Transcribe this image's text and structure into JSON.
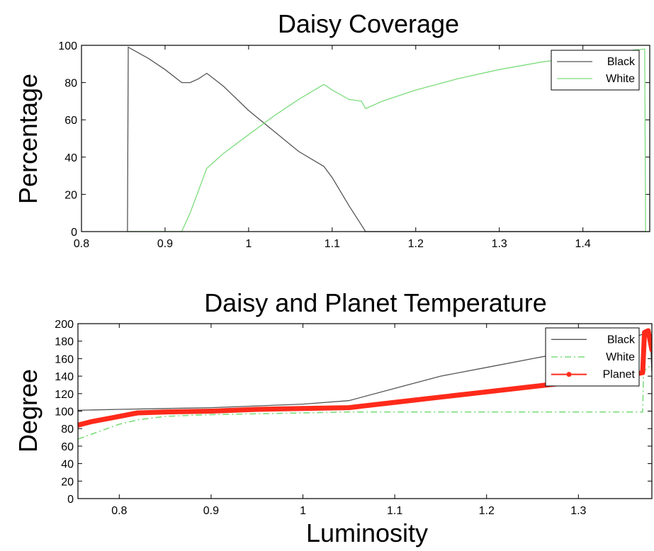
{
  "chart_data": [
    {
      "type": "line",
      "title": "Daisy Coverage",
      "xlabel": "",
      "ylabel": "Percentage",
      "xlim": [
        0.8,
        1.48
      ],
      "ylim": [
        0,
        100
      ],
      "xticks": [
        0.8,
        0.9,
        1,
        1.1,
        1.2,
        1.3,
        1.4
      ],
      "xtick_labels": [
        "0.8",
        "0.9",
        "1",
        "1.1",
        "1.2",
        "1.3",
        "1.4"
      ],
      "yticks": [
        0,
        20,
        40,
        60,
        80,
        100
      ],
      "ytick_labels": [
        "0",
        "20",
        "40",
        "60",
        "80",
        "100"
      ],
      "legend_placement": "top-right",
      "series": [
        {
          "name": "Black",
          "color": "#555555",
          "style": "solid",
          "x": [
            0.855,
            0.856,
            0.86,
            0.88,
            0.9,
            0.92,
            0.93,
            0.94,
            0.95,
            0.97,
            1.0,
            1.03,
            1.06,
            1.09,
            1.1,
            1.12,
            1.14,
            1.2,
            1.3,
            1.4,
            1.475
          ],
          "y": [
            0,
            99,
            98,
            93,
            87,
            80,
            80,
            82,
            85,
            78,
            65,
            54,
            43,
            35,
            29,
            14,
            0,
            0,
            0,
            0,
            0
          ]
        },
        {
          "name": "White",
          "color": "#7ddc7d",
          "style": "solid",
          "x": [
            0.855,
            0.9,
            0.92,
            0.93,
            0.95,
            0.97,
            1.0,
            1.03,
            1.06,
            1.09,
            1.1,
            1.12,
            1.135,
            1.14,
            1.16,
            1.2,
            1.25,
            1.3,
            1.35,
            1.4,
            1.45,
            1.474,
            1.475,
            1.48
          ],
          "y": [
            0,
            0,
            0,
            10,
            34,
            42,
            52,
            62,
            71,
            79,
            76,
            71,
            70,
            66,
            70,
            76,
            82,
            87,
            91,
            94,
            97,
            98,
            0,
            0
          ]
        }
      ]
    },
    {
      "type": "line",
      "title": "Daisy and Planet Temperature",
      "xlabel": "Luminosity",
      "ylabel": "Degree",
      "xlim": [
        0.755,
        1.38
      ],
      "ylim": [
        0,
        200
      ],
      "xticks": [
        0.8,
        0.9,
        1,
        1.1,
        1.2,
        1.3
      ],
      "xtick_labels": [
        "0.8",
        "0.9",
        "1",
        "1.1",
        "1.2",
        "1.3"
      ],
      "yticks": [
        0,
        20,
        40,
        60,
        80,
        100,
        120,
        140,
        160,
        180,
        200
      ],
      "ytick_labels": [
        "0",
        "20",
        "40",
        "60",
        "80",
        "100",
        "120",
        "140",
        "160",
        "180",
        "200"
      ],
      "legend_placement": "top-right",
      "series": [
        {
          "name": "Black",
          "color": "#555555",
          "style": "solid",
          "x": [
            0.755,
            0.8,
            0.85,
            0.9,
            0.95,
            1.0,
            1.05,
            1.1,
            1.15,
            1.2,
            1.25,
            1.3,
            1.35,
            1.375,
            1.378,
            1.38
          ],
          "y": [
            101,
            102,
            103,
            104,
            106,
            108,
            112,
            126,
            140,
            150,
            160,
            170,
            180,
            190,
            192,
            145
          ]
        },
        {
          "name": "White",
          "color": "#7ddc7d",
          "style": "dashdot",
          "x": [
            0.755,
            0.8,
            0.82,
            0.85,
            0.9,
            0.95,
            1.0,
            1.05,
            1.1,
            1.2,
            1.3,
            1.37,
            1.371,
            1.375,
            1.38
          ],
          "y": [
            68,
            85,
            90,
            94,
            96,
            97,
            98,
            99,
            99,
            99,
            99,
            99,
            145,
            150,
            152
          ]
        },
        {
          "name": "Planet",
          "color": "#ff2a1a",
          "style": "solid-markers",
          "x": [
            0.755,
            0.77,
            0.79,
            0.81,
            0.82,
            0.85,
            0.9,
            0.95,
            1.0,
            1.05,
            1.1,
            1.15,
            1.2,
            1.25,
            1.3,
            1.35,
            1.37,
            1.372,
            1.376,
            1.38
          ],
          "y": [
            84,
            88,
            92,
            96,
            98,
            99,
            100,
            102,
            103,
            104,
            110,
            116,
            122,
            128,
            134,
            140,
            144,
            190,
            192,
            170
          ]
        }
      ]
    }
  ]
}
